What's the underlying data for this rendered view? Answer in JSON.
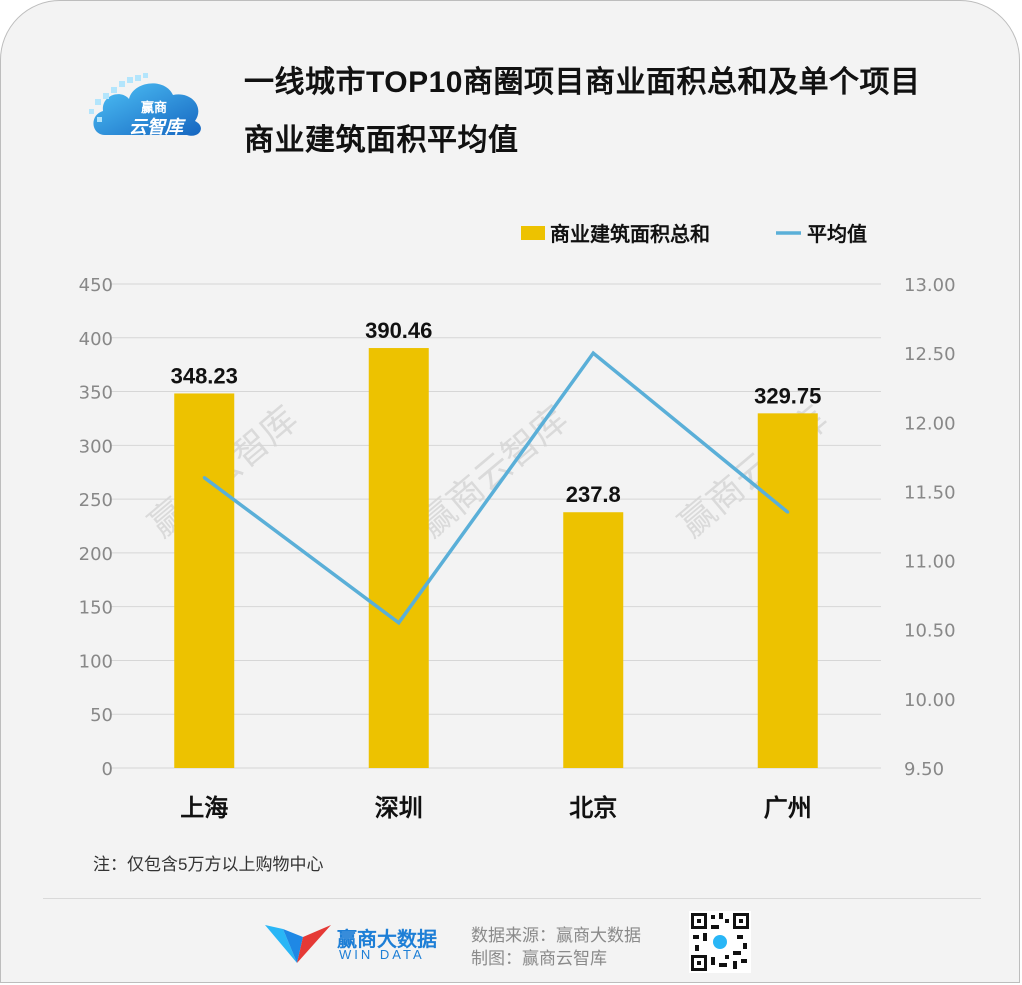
{
  "title": {
    "line1": "一线城市TOP10商圈项目商业面积总和及单个项目",
    "line2": "商业建筑面积平均值"
  },
  "logo": {
    "text": "赢商 云智库"
  },
  "legend": {
    "bar_label": "商业建筑面积总和",
    "line_label": "平均值"
  },
  "watermark": "赢商云智库",
  "colors": {
    "bar": "#edc200",
    "line": "#5aafd8",
    "grid": "#d6d6d6",
    "tick": "#888888"
  },
  "chart_data": {
    "type": "bar",
    "categories": [
      "上海",
      "深圳",
      "北京",
      "广州"
    ],
    "series": [
      {
        "name": "商业建筑面积总和",
        "type": "bar",
        "axis": "left",
        "values": [
          348.23,
          390.46,
          237.8,
          329.75
        ],
        "labels": [
          "348.23",
          "390.46",
          "237.8",
          "329.75"
        ]
      },
      {
        "name": "平均值",
        "type": "line",
        "axis": "right",
        "values": [
          11.6,
          10.55,
          12.5,
          11.35
        ]
      }
    ],
    "y_left": {
      "range": [
        0,
        450
      ],
      "ticks": [
        "0",
        "50",
        "100",
        "150",
        "200",
        "250",
        "300",
        "350",
        "400",
        "450"
      ]
    },
    "y_right": {
      "range": [
        9.5,
        13.0
      ],
      "ticks": [
        "9.50",
        "10.00",
        "10.50",
        "11.00",
        "11.50",
        "12.00",
        "12.50",
        "13.00"
      ]
    },
    "grid": true,
    "legend_position": "top-right"
  },
  "note": "注：仅包含5万方以上购物中心",
  "footer": {
    "brand_name": "赢商大数据",
    "brand_sub": "WIN DATA",
    "source": "数据来源：赢商大数据",
    "made_by": "制图：赢商云智库"
  }
}
